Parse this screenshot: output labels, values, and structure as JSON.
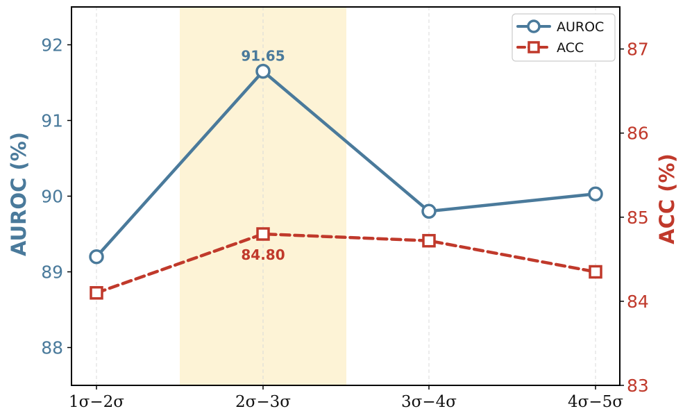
{
  "chart_data": {
    "type": "line",
    "categories": [
      "1σ−2σ",
      "2σ−3σ",
      "3σ−4σ",
      "4σ−5σ"
    ],
    "series": [
      {
        "name": "AUROC",
        "axis": "left",
        "values": [
          89.2,
          91.65,
          89.8,
          90.03
        ],
        "color": "#4a7a9b",
        "marker": "circle",
        "line_style": "solid"
      },
      {
        "name": "ACC",
        "axis": "right",
        "values": [
          84.1,
          84.8,
          84.72,
          84.35
        ],
        "color": "#c0392b",
        "marker": "square",
        "line_style": "dashed"
      }
    ],
    "annotations": [
      {
        "series": "AUROC",
        "category": "2σ−3σ",
        "text": "91.65",
        "placement": "above"
      },
      {
        "series": "ACC",
        "category": "2σ−3σ",
        "text": "84.80",
        "placement": "below"
      }
    ],
    "highlight_band": {
      "category": "2σ−3σ",
      "color": "#fdf3d6"
    },
    "left_axis": {
      "label": "AUROC (%)",
      "range": [
        87.5,
        92.5
      ],
      "ticks": [
        88,
        89,
        90,
        91,
        92
      ],
      "color": "#4a7a9b"
    },
    "right_axis": {
      "label": "ACC (%)",
      "range": [
        83,
        87.5
      ],
      "ticks": [
        83,
        84,
        85,
        86,
        87
      ],
      "color": "#c0392b"
    },
    "xlabel": "",
    "grid": "vertical-dashed",
    "legend_position": "top-right"
  }
}
